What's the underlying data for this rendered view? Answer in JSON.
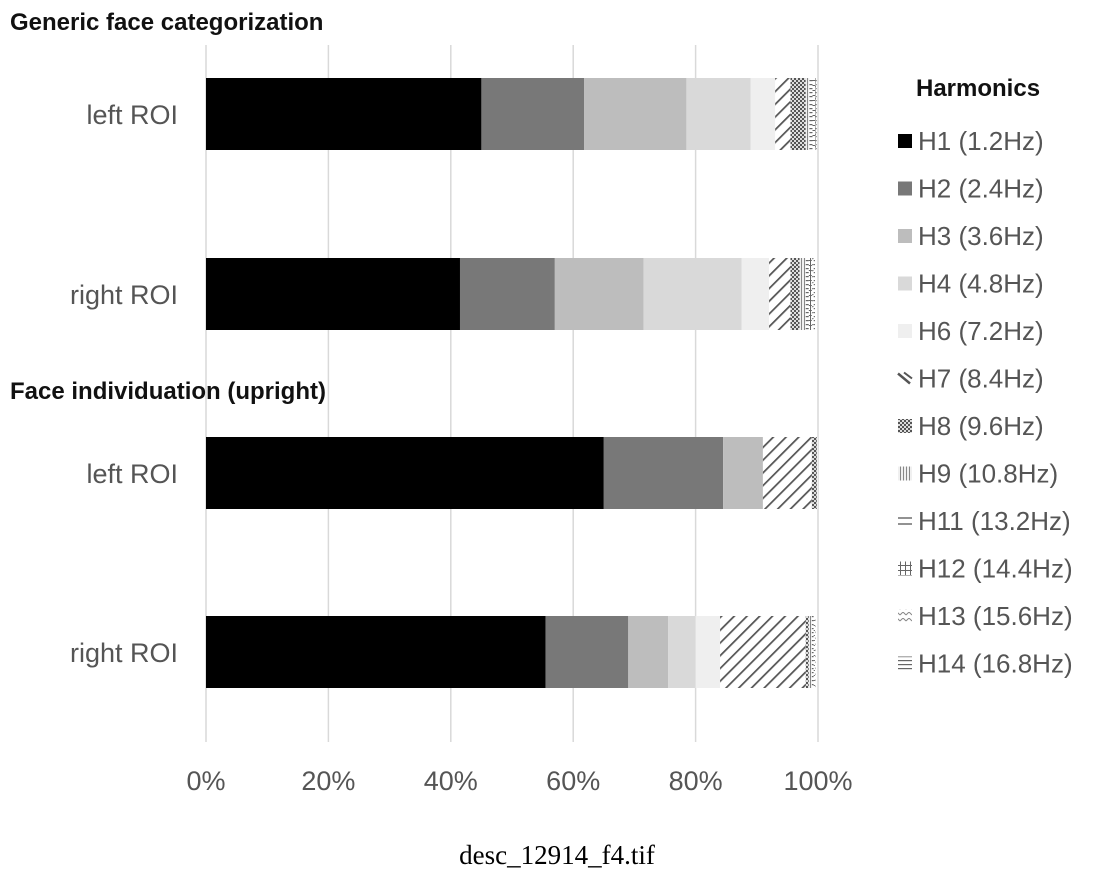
{
  "chart_data": {
    "type": "bar",
    "orientation": "horizontal",
    "stacked": true,
    "groups": [
      {
        "title": "Generic face categorization",
        "categories": [
          "left ROI",
          "right ROI"
        ]
      },
      {
        "title": "Face individuation (upright)",
        "categories": [
          "left ROI",
          "right ROI"
        ]
      }
    ],
    "bar_labels": [
      "left ROI",
      "right ROI",
      "left ROI",
      "right ROI"
    ],
    "series": [
      {
        "name": "H1 (1.2Hz)",
        "color": "#000000",
        "pattern": "solid",
        "values": [
          45.0,
          41.5,
          65.0,
          55.5
        ]
      },
      {
        "name": "H2 (2.4Hz)",
        "color": "#787878",
        "pattern": "solid",
        "values": [
          16.8,
          15.5,
          19.5,
          13.5
        ]
      },
      {
        "name": "H3 (3.6Hz)",
        "color": "#bdbdbd",
        "pattern": "solid",
        "values": [
          16.7,
          14.5,
          6.5,
          6.5
        ]
      },
      {
        "name": "H4 (4.8Hz)",
        "color": "#d9d9d9",
        "pattern": "solid",
        "values": [
          10.5,
          16.0,
          0.0,
          4.5
        ]
      },
      {
        "name": "H6 (7.2Hz)",
        "color": "#efefef",
        "pattern": "solid",
        "values": [
          4.0,
          4.5,
          0.0,
          4.0
        ]
      },
      {
        "name": "H7 (8.4Hz)",
        "color": "#555555",
        "pattern": "diagonal",
        "values": [
          2.5,
          3.5,
          8.0,
          14.0
        ]
      },
      {
        "name": "H8 (9.6Hz)",
        "color": "#666666",
        "pattern": "dots",
        "values": [
          2.5,
          1.5,
          0.8,
          0.5
        ]
      },
      {
        "name": "H9 (10.8Hz)",
        "color": "#888888",
        "pattern": "vlines",
        "values": [
          0.6,
          1.0,
          0.2,
          0.5
        ]
      },
      {
        "name": "H11 (13.2Hz)",
        "color": "#666666",
        "pattern": "hlines",
        "values": [
          0.5,
          0.5,
          0.0,
          0.3
        ]
      },
      {
        "name": "H12 (14.4Hz)",
        "color": "#666666",
        "pattern": "grid",
        "values": [
          0.5,
          0.5,
          0.0,
          0.2
        ]
      },
      {
        "name": "H13 (15.6Hz)",
        "color": "#888888",
        "pattern": "zigzag",
        "values": [
          0.1,
          0.3,
          0.0,
          0.1
        ]
      },
      {
        "name": "H14 (16.8Hz)",
        "color": "#777777",
        "pattern": "hlines",
        "values": [
          0.1,
          0.2,
          0.0,
          0.0
        ]
      }
    ],
    "x_axis": {
      "tick_values": [
        0,
        20,
        40,
        60,
        80,
        100
      ],
      "tick_labels": [
        "0%",
        "20%",
        "40%",
        "60%",
        "80%",
        "100%"
      ],
      "xlim": [
        0,
        100
      ]
    },
    "grid": "vertical",
    "legend": {
      "title": "Harmonics",
      "placement": "right"
    }
  },
  "caption": "desc_12914_f4.tif"
}
